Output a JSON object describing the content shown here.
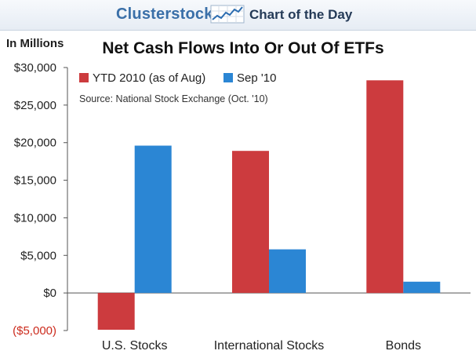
{
  "header": {
    "brand": "Clusterstock",
    "brand_icon": "rising-line-chart-icon",
    "section": "Chart of the Day"
  },
  "chart_data": {
    "type": "bar",
    "title": "Net Cash Flows Into Or Out Of ETFs",
    "unit_label": "In Millions",
    "source": "Source: National Stock Exchange (Oct. '10)",
    "categories": [
      "U.S. Stocks",
      "International Stocks",
      "Bonds"
    ],
    "series": [
      {
        "name": "YTD 2010 (as of Aug)",
        "color": "#cc3b3e",
        "values": [
          -4900,
          18900,
          28300
        ]
      },
      {
        "name": "Sep '10",
        "color": "#2b86d4",
        "values": [
          19600,
          5800,
          1500
        ]
      }
    ],
    "ylim": [
      -5000,
      30000
    ],
    "y_ticks": [
      {
        "value": 30000,
        "label": "$30,000"
      },
      {
        "value": 25000,
        "label": "$25,000"
      },
      {
        "value": 20000,
        "label": "$20,000"
      },
      {
        "value": 15000,
        "label": "$15,000"
      },
      {
        "value": 10000,
        "label": "$10,000"
      },
      {
        "value": 5000,
        "label": "$5,000"
      },
      {
        "value": 0,
        "label": "$0"
      },
      {
        "value": -5000,
        "label": "($5,000)"
      }
    ],
    "negative_tick_color": "#cc2b1d",
    "grid": false,
    "legend_position": "top-left"
  }
}
